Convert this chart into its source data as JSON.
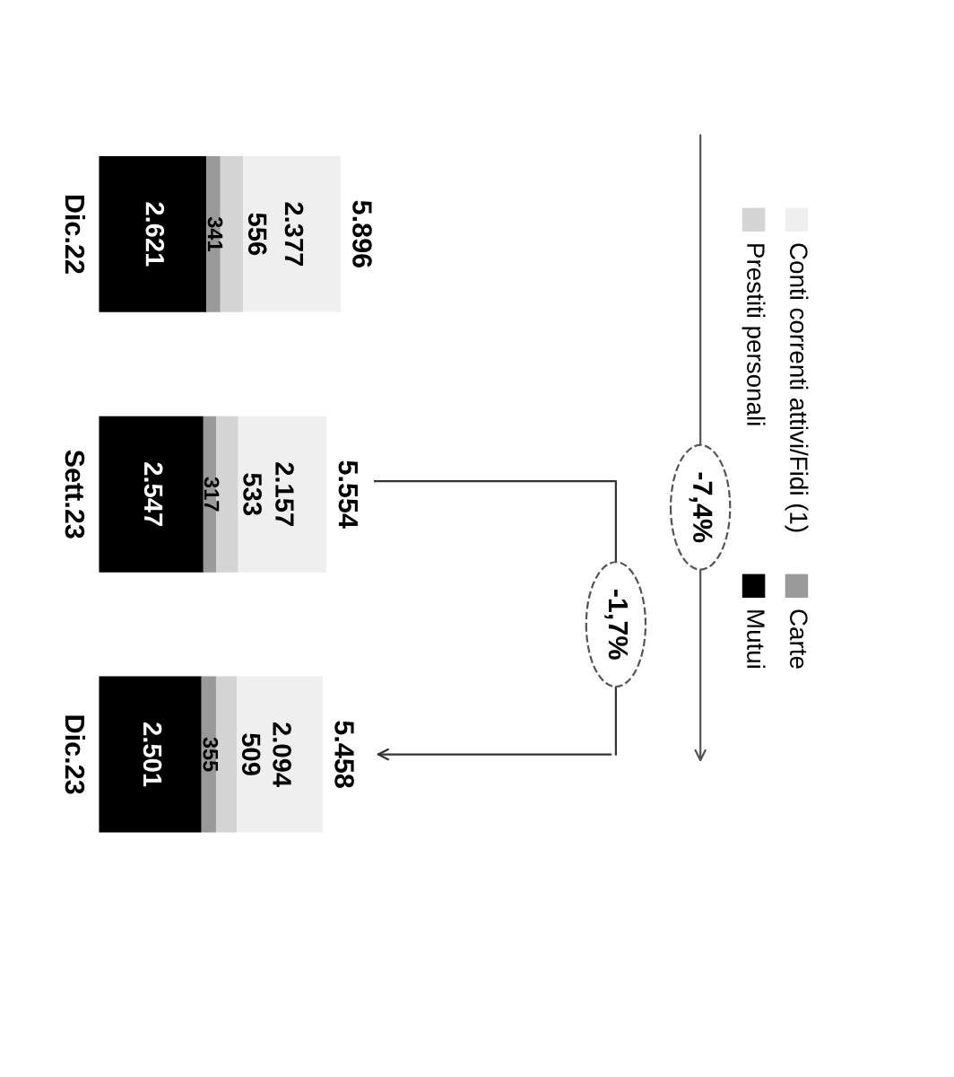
{
  "chart_data": {
    "type": "bar",
    "orientation": "horizontal",
    "stacked": true,
    "legend": "right",
    "categories": [
      "Dic.22",
      "Sett.23",
      "Dic.23"
    ],
    "series": [
      {
        "name": "Mutui",
        "color": "#000000",
        "values": [
          2621,
          2547,
          2501
        ],
        "value_labels": [
          "2.621",
          "2.547",
          "2.501"
        ]
      },
      {
        "name": "Carte",
        "color": "#9a9a9a",
        "values": [
          341,
          317,
          355
        ],
        "value_labels": [
          "341",
          "317",
          "355"
        ]
      },
      {
        "name": "Prestiti personali",
        "color": "#d4d4d4",
        "values": [
          556,
          533,
          509
        ],
        "value_labels": [
          "556",
          "533",
          "509"
        ]
      },
      {
        "name": "Conti correnti attivi/Fidi (1)",
        "color": "#efefef",
        "values": [
          2377,
          2157,
          2094
        ],
        "value_labels": [
          "2.377",
          "2.157",
          "2.094"
        ]
      }
    ],
    "totals": [
      "5.896",
      "5.554",
      "5.458"
    ],
    "annotations": [
      "-7,4%",
      "-1,7%"
    ]
  }
}
